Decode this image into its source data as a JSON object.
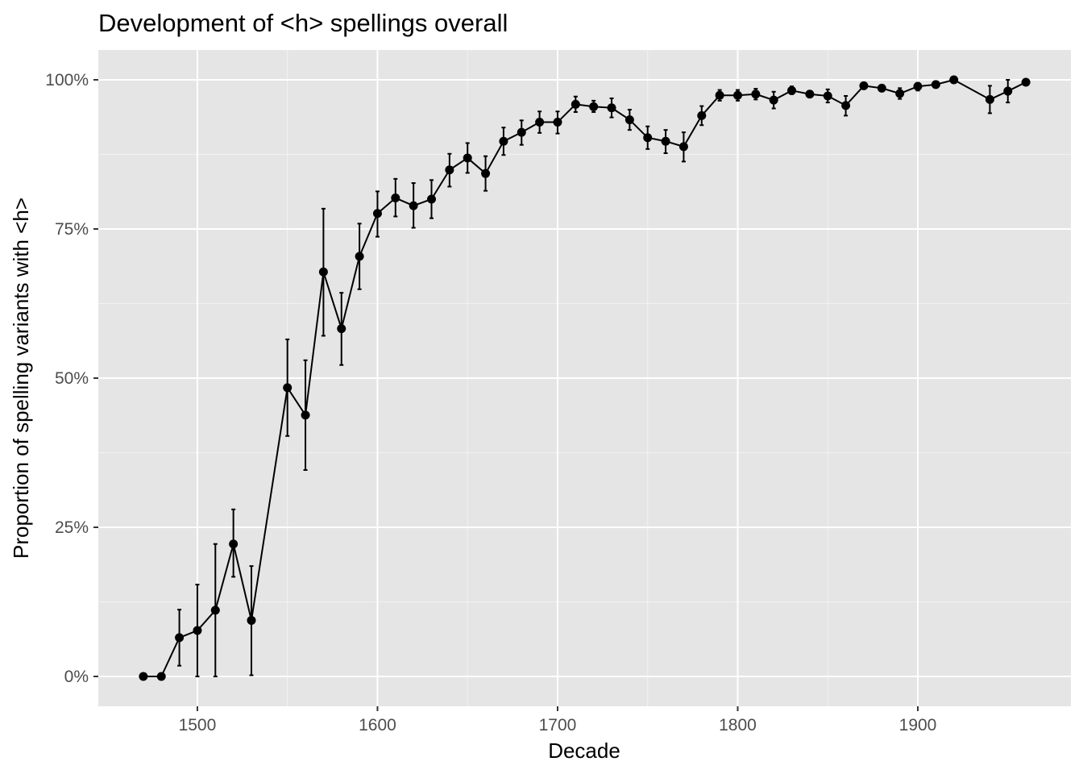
{
  "chart_data": {
    "type": "line",
    "title": "Development of <h> spellings overall",
    "xlabel": "Decade",
    "ylabel": "Proportion of spelling variants with <h>",
    "xlim": [
      1445,
      1985
    ],
    "ylim": [
      -0.05,
      1.05
    ],
    "x_ticks": [
      1500,
      1600,
      1700,
      1800,
      1900
    ],
    "y_ticks": [
      0,
      0.25,
      0.5,
      0.75,
      1.0
    ],
    "y_tick_labels": [
      "0%",
      "25%",
      "50%",
      "75%",
      "100%"
    ],
    "grid": true,
    "legend": "none",
    "colors": {
      "panel": "#e5e5e5",
      "grid_major": "#ffffff",
      "grid_minor": "#f2f2f2",
      "series": "#000000",
      "tick_label": "#4d4d4d"
    },
    "series": [
      {
        "x": [
          1470,
          1480,
          1490,
          1500,
          1510,
          1520,
          1530,
          1550,
          1560,
          1570,
          1580,
          1590,
          1600,
          1610,
          1620,
          1630,
          1640,
          1650,
          1660,
          1670,
          1680,
          1690,
          1700,
          1710,
          1720,
          1730,
          1740,
          1750,
          1760,
          1770,
          1780,
          1790,
          1800,
          1810,
          1820,
          1830,
          1840,
          1850,
          1860,
          1870,
          1880,
          1890,
          1900,
          1910,
          1920,
          1940,
          1950,
          1960
        ],
        "y": [
          0.0,
          0.0,
          0.065,
          0.077,
          0.111,
          0.222,
          0.094,
          0.484,
          0.438,
          0.678,
          0.583,
          0.704,
          0.776,
          0.802,
          0.789,
          0.8,
          0.849,
          0.869,
          0.843,
          0.897,
          0.912,
          0.929,
          0.929,
          0.959,
          0.955,
          0.953,
          0.933,
          0.903,
          0.897,
          0.888,
          0.94,
          0.974,
          0.974,
          0.976,
          0.966,
          0.982,
          0.976,
          0.973,
          0.957,
          0.99,
          0.986,
          0.977,
          0.989,
          0.992,
          1.0,
          0.967,
          0.981,
          0.996
        ],
        "lower": [
          0.0,
          0.0,
          0.018,
          0.0,
          0.0,
          0.167,
          0.002,
          0.403,
          0.346,
          0.571,
          0.522,
          0.649,
          0.737,
          0.771,
          0.752,
          0.768,
          0.821,
          0.844,
          0.814,
          0.874,
          0.891,
          0.911,
          0.91,
          0.946,
          0.946,
          0.937,
          0.916,
          0.884,
          0.877,
          0.863,
          0.924,
          0.965,
          0.965,
          0.967,
          0.952,
          0.976,
          0.974,
          0.962,
          0.94,
          0.986,
          0.981,
          0.968,
          0.982,
          0.988,
          0.998,
          0.944,
          0.962,
          0.993
        ],
        "upper": [
          0.0,
          0.0,
          0.112,
          0.154,
          0.222,
          0.28,
          0.185,
          0.565,
          0.53,
          0.784,
          0.643,
          0.759,
          0.813,
          0.834,
          0.827,
          0.832,
          0.876,
          0.894,
          0.872,
          0.92,
          0.932,
          0.947,
          0.947,
          0.972,
          0.965,
          0.969,
          0.95,
          0.922,
          0.916,
          0.912,
          0.956,
          0.983,
          0.983,
          0.985,
          0.98,
          0.989,
          0.979,
          0.984,
          0.973,
          0.995,
          0.991,
          0.986,
          0.995,
          0.996,
          1.0,
          0.99,
          1.0,
          0.999
        ]
      }
    ]
  }
}
